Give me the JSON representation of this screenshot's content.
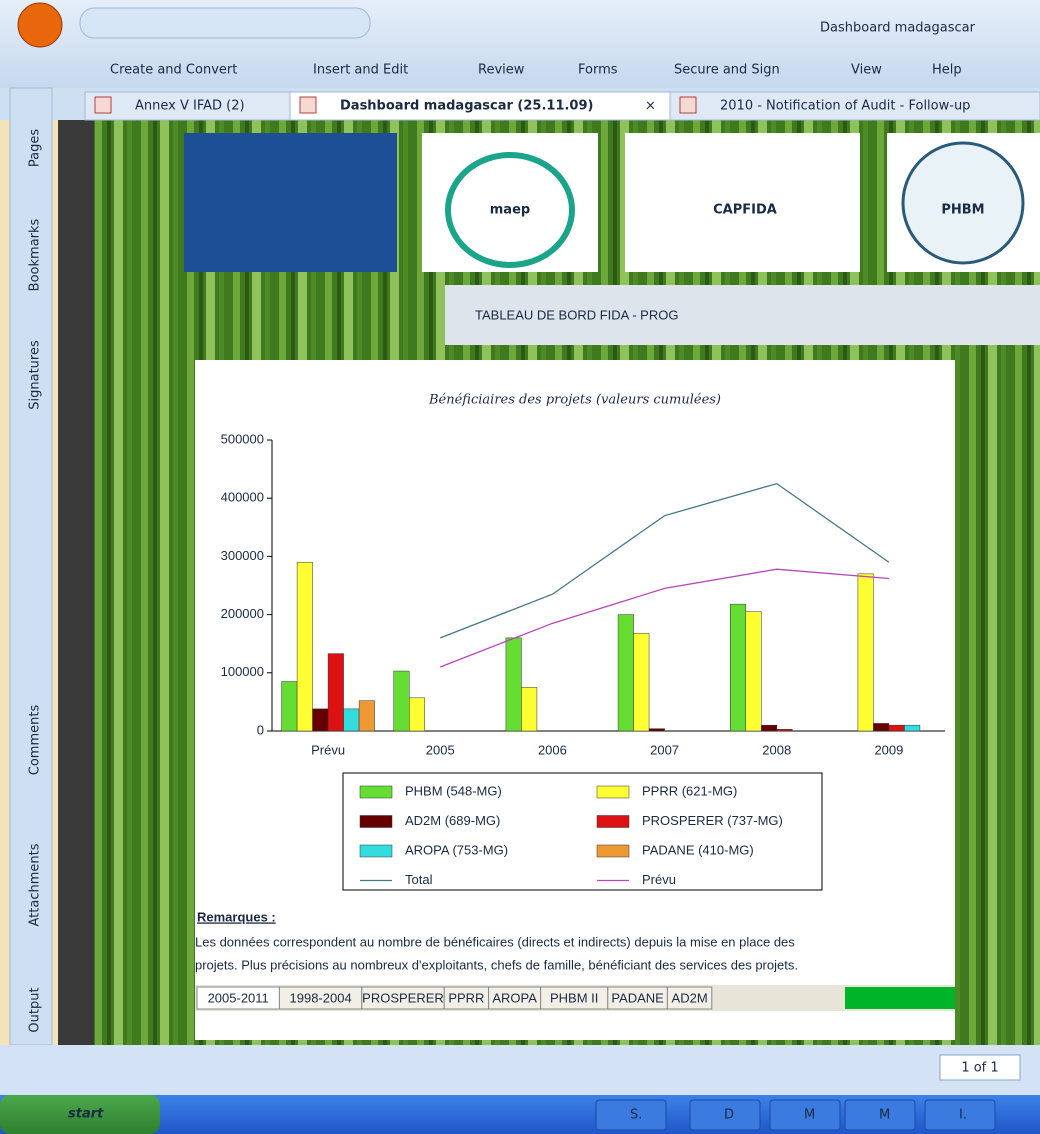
{
  "window": {
    "title": "Dashboard madagascar",
    "menu": [
      "Create and Convert",
      "Insert and Edit",
      "Review",
      "Forms",
      "Secure and Sign",
      "View",
      "Help"
    ],
    "tabs": [
      "Annex V IFAD (2)",
      "Dashboard madagascar (25.11.09)",
      "2010 - Notification of Audit - Follow-up"
    ],
    "side_panels": [
      "Pages",
      "Bookmarks",
      "Signatures",
      "Comments",
      "Attachments",
      "Output"
    ],
    "page_nav": "1 of 1",
    "taskbar": {
      "start": "start",
      "tasks": [
        "S.",
        "D",
        "M",
        "M",
        "I."
      ]
    }
  },
  "document": {
    "logos": [
      "maep",
      "CAPFIDA",
      "PHBM"
    ],
    "banner": "TABLEAU DE BORD FIDA - PROG",
    "remarks_title": "Remarques :",
    "remarks": [
      "Les données correspondent au nombre de bénéficaires (directs et indirects) depuis la mise en place des",
      "projets. Plus précisions au nombreux d'exploitants, chefs de famille, bénéficiant des services des projets."
    ],
    "sheet_tabs": [
      "2005-2011",
      "1998-2004",
      "PROSPERER",
      "PPRR",
      "AROPA",
      "PHBM II",
      "PADANE",
      "AD2M"
    ]
  },
  "chart_data": {
    "type": "bar",
    "title": "Bénéficiaires des projets (valeurs cumulées)",
    "categories": [
      "Prévu",
      "2005",
      "2006",
      "2007",
      "2008",
      "2009"
    ],
    "ylim": [
      0,
      500000
    ],
    "yticks": [
      0,
      100000,
      200000,
      300000,
      400000,
      500000
    ],
    "series": [
      {
        "name": "PHBM (548-MG)",
        "color": "#66dd33",
        "values": [
          85000,
          103000,
          160000,
          200000,
          218000,
          0
        ]
      },
      {
        "name": "PPRR (621-MG)",
        "color": "#ffff33",
        "values": [
          290000,
          57000,
          75000,
          168000,
          205000,
          270000
        ]
      },
      {
        "name": "AD2M (689-MG)",
        "color": "#660000",
        "values": [
          38000,
          0,
          0,
          4000,
          10000,
          13000
        ]
      },
      {
        "name": "PROSPERER (737-MG)",
        "color": "#dd1111",
        "values": [
          133000,
          0,
          0,
          0,
          3000,
          10000
        ]
      },
      {
        "name": "AROPA (753-MG)",
        "color": "#33dddd",
        "values": [
          38000,
          0,
          0,
          0,
          0,
          10000
        ]
      },
      {
        "name": "PADANE (410-MG)",
        "color": "#ee9933",
        "values": [
          52000,
          0,
          0,
          0,
          0,
          0
        ]
      },
      {
        "name": "Total",
        "color": "#447788",
        "type": "line",
        "values": [
          null,
          160000,
          235000,
          370000,
          425000,
          290000
        ]
      },
      {
        "name": "Prévu",
        "color": "#bb44bb",
        "type": "line",
        "values": [
          null,
          110000,
          185000,
          245000,
          278000,
          262000
        ]
      }
    ]
  }
}
